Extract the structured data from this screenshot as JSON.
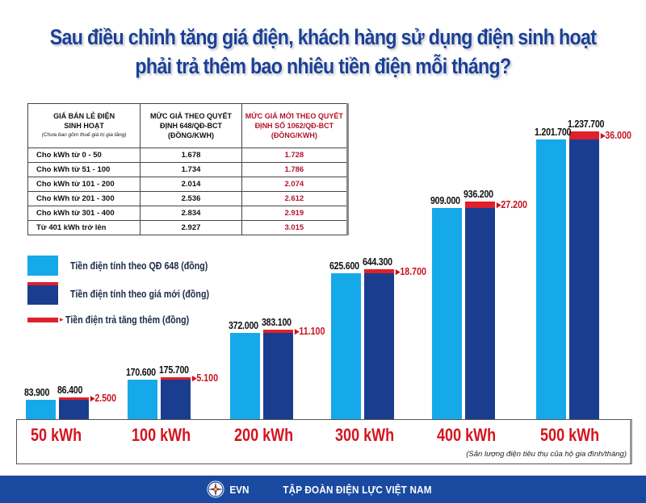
{
  "title": {
    "line1": "Sau điều chỉnh tăng giá điện, khách hàng sử dụng điện sinh hoạt",
    "line2": "phải trả thêm bao nhiêu tiền điện mỗi tháng?"
  },
  "table": {
    "headers": {
      "col1": "GIÁ BÁN LẺ ĐIỆN SINH HOẠT",
      "col1_note": "(Chưa bao gồm thuế giá trị gia tăng)",
      "col2": "MỨC GIÁ THEO QUYẾT ĐỊNH 648/QĐ-BCT (ĐỒNG/KWH)",
      "col3": "MỨC GIÁ MỚI THEO QUYẾT ĐỊNH SỐ 1062/QĐ-BCT (ĐỒNG/KWH)"
    },
    "rows": [
      {
        "tier": "Cho kWh từ 0 - 50",
        "old": "1.678",
        "new": "1.728"
      },
      {
        "tier": "Cho kWh từ 51 - 100",
        "old": "1.734",
        "new": "1.786"
      },
      {
        "tier": "Cho kWh từ 101 - 200",
        "old": "2.014",
        "new": "2.074"
      },
      {
        "tier": "Cho kWh từ 201 - 300",
        "old": "2.536",
        "new": "2.612"
      },
      {
        "tier": "Cho kWh từ 301 - 400",
        "old": "2.834",
        "new": "2.919"
      },
      {
        "tier": "Từ 401 kWh trở lên",
        "old": "2.927",
        "new": "3.015"
      }
    ]
  },
  "legend": {
    "old": "Tiền điện tính theo QĐ 648 (đồng)",
    "new": "Tiền điện tính theo giá mới (đồng)",
    "increase": "Tiền điện trả tăng thêm (đồng)"
  },
  "colors": {
    "old_bar": "#16a9ea",
    "new_bar": "#1a3d8f",
    "increase": "#e0202a",
    "title": "#1b3f94",
    "category_label": "#d3141f"
  },
  "chart_data": {
    "type": "bar",
    "title": "Sau điều chỉnh tăng giá điện, khách hàng sử dụng điện sinh hoạt phải trả thêm bao nhiêu tiền điện mỗi tháng?",
    "xlabel": "(Sản lượng điện tiêu thụ của hộ gia đình/tháng)",
    "ylabel": "",
    "categories": [
      "50 kWh",
      "100 kWh",
      "200 kWh",
      "300 kWh",
      "400 kWh",
      "500 kWh"
    ],
    "series": [
      {
        "name": "Tiền điện tính theo QĐ 648 (đồng)",
        "values": [
          83900,
          170600,
          372000,
          625600,
          909000,
          1201700
        ],
        "labels": [
          "83.900",
          "170.600",
          "372.000",
          "625.600",
          "909.000",
          "1.201.700"
        ]
      },
      {
        "name": "Tiền điện tính theo giá mới (đồng)",
        "values": [
          86400,
          175700,
          383100,
          644300,
          936200,
          1237700
        ],
        "labels": [
          "86.400",
          "175.700",
          "383.100",
          "644.300",
          "936.200",
          "1.237.700"
        ]
      },
      {
        "name": "Tiền điện trả tăng thêm (đồng)",
        "values": [
          2500,
          5100,
          11100,
          18700,
          27200,
          36000
        ],
        "labels": [
          "2.500",
          "5.100",
          "11.100",
          "18.700",
          "27.200",
          "36.000"
        ]
      }
    ],
    "legend_position": "left",
    "grid": false
  },
  "footnote": "(Sản lượng điện tiêu thụ của hộ gia đình/tháng)",
  "footer": {
    "logo_text": "EVN",
    "org_name": "TẬP ĐOÀN ĐIỆN LỰC VIỆT NAM"
  }
}
